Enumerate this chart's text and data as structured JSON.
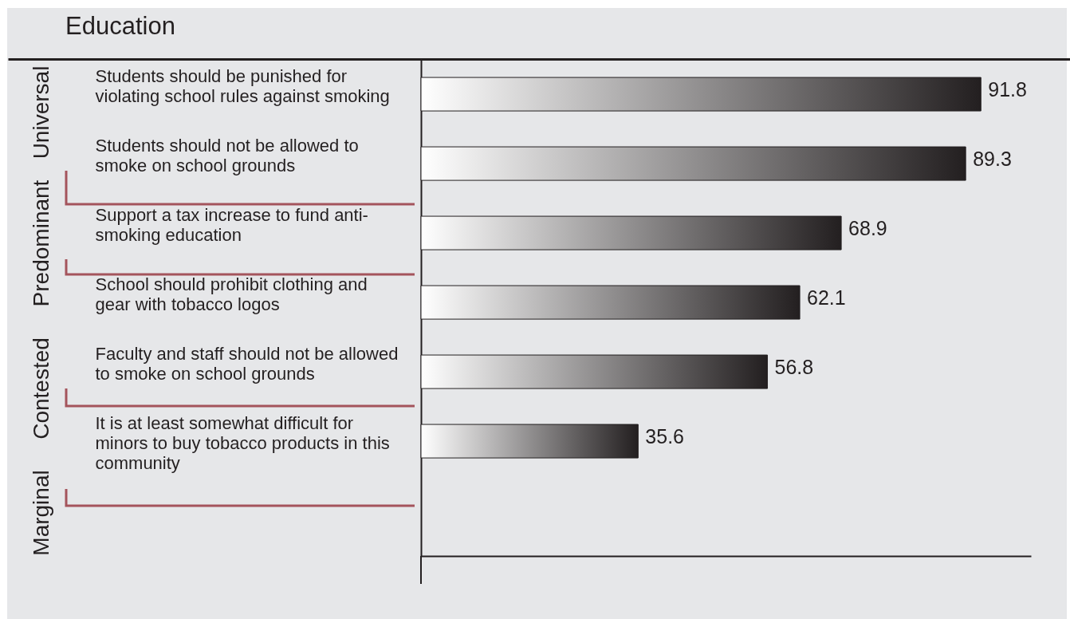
{
  "chart_data": {
    "type": "bar",
    "orientation": "horizontal",
    "title": "Education",
    "categories": [
      "Students should be punished for violating school rules against smoking",
      "Students should not be allowed to smoke on school grounds",
      "Support a tax increase to fund anti-smoking education",
      "School should prohibit clothing and gear with tobacco logos",
      "Faculty and staff should not be allowed to smoke on school grounds",
      "It is at least somewhat difficult for minors to buy tobacco products in this community"
    ],
    "values": [
      91.8,
      89.3,
      68.9,
      62.1,
      56.8,
      35.6
    ],
    "color": "#231f20",
    "xlim": [
      0,
      100
    ],
    "data_labels": true,
    "tick_labels": "y",
    "annotations": [
      "Universal",
      "Predominant",
      "Contested",
      "Marginal"
    ]
  }
}
